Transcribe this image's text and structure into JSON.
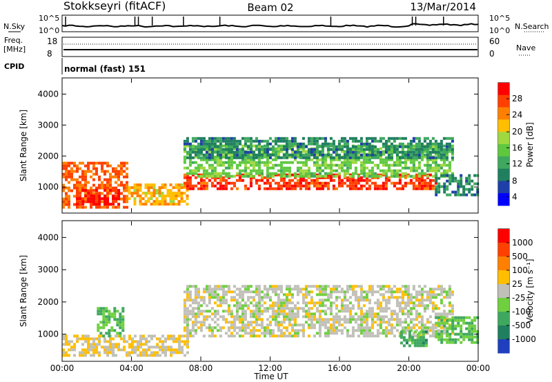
{
  "header": {
    "title": "Stokkseyri (fitACF)",
    "beam": "Beam 02",
    "date": "13/Mar/2014"
  },
  "noise_panel": {
    "left_label": "N.Sky",
    "right_label": "N.Search",
    "left_ticks": [
      "10^5",
      "10^0"
    ],
    "right_ticks": [
      "10^5",
      "10^0"
    ]
  },
  "freq_panel": {
    "left_label_1": "Freq.",
    "left_label_2": "[MHz]",
    "right_label": "Nave",
    "left_ticks": [
      "18",
      "8"
    ],
    "right_ticks": [
      "60",
      "0"
    ]
  },
  "cpid_panel": {
    "label": "CPID",
    "text": "normal (fast) 151"
  },
  "time_axis": {
    "label": "Time UT",
    "ticks": [
      "00:00",
      "04:00",
      "08:00",
      "12:00",
      "16:00",
      "20:00",
      "00:00"
    ]
  },
  "power_panel": {
    "ylabel": "Slant Range [km]",
    "yticks": [
      "4000",
      "3000",
      "2000",
      "1000"
    ],
    "colorbar_label": "Power [dB]",
    "colorbar_ticks": [
      "28",
      "24",
      "20",
      "16",
      "12",
      "8",
      "4"
    ],
    "colors": [
      "#0000ff",
      "#1f3fa8",
      "#1f7f5f",
      "#3fa85f",
      "#5fc83f",
      "#9fd83f",
      "#ffbf00",
      "#ff8000",
      "#ff4000",
      "#ff0000"
    ]
  },
  "velocity_panel": {
    "ylabel": "Slant Range [km]",
    "yticks": [
      "4000",
      "3000",
      "2000",
      "1000"
    ],
    "colorbar_label": "Velocity [m s⁻¹]",
    "colorbar_ticks": [
      "1000",
      "500",
      "100",
      "25",
      "-25",
      "-100",
      "-500",
      "-1000"
    ],
    "colors": [
      "#1f3fbf",
      "#1f7f5f",
      "#3fa85f",
      "#6fcf3f",
      "#c0c0b8",
      "#ffbf00",
      "#ff8000",
      "#ff4000",
      "#ff0000"
    ]
  },
  "chart_data": [
    {
      "type": "line",
      "name": "noise",
      "x_range": [
        0,
        24
      ],
      "y_label_ticks": [
        "10^0",
        "10^5"
      ],
      "description_series": "sky noise"
    },
    {
      "type": "heatmap",
      "name": "power",
      "xlabel": "Time UT",
      "ylabel": "Slant Range [km]",
      "x_range_hours": [
        0,
        24
      ],
      "y_range_km": [
        180,
        4500
      ],
      "colorbar": "Power [dB]",
      "color_range": [
        0,
        30
      ],
      "regions": [
        {
          "t0": 0.0,
          "t1": 3.8,
          "r0": 300,
          "r1": 1800,
          "level": 24
        },
        {
          "t0": 0.8,
          "t1": 3.2,
          "r0": 400,
          "r1": 900,
          "level": 28
        },
        {
          "t0": 3.8,
          "t1": 7.2,
          "r0": 400,
          "r1": 1100,
          "level": 20
        },
        {
          "t0": 7.0,
          "t1": 21.5,
          "r0": 900,
          "r1": 1400,
          "level": 26
        },
        {
          "t0": 7.0,
          "t1": 22.5,
          "r0": 1300,
          "r1": 2300,
          "level": 14
        },
        {
          "t0": 7.0,
          "t1": 22.5,
          "r0": 1900,
          "r1": 2600,
          "level": 8
        },
        {
          "t0": 21.5,
          "t1": 24,
          "r0": 700,
          "r1": 1400,
          "level": 8
        }
      ]
    },
    {
      "type": "heatmap",
      "name": "velocity",
      "xlabel": "Time UT",
      "ylabel": "Slant Range [km]",
      "x_range_hours": [
        0,
        24
      ],
      "y_range_km": [
        180,
        4500
      ],
      "colorbar": "Velocity [m s⁻¹]",
      "color_range": [
        -1000,
        1000
      ],
      "regions": [
        {
          "t0": 0.0,
          "t1": 7.2,
          "r0": 300,
          "r1": 900,
          "level": 100
        },
        {
          "t0": 2.0,
          "t1": 3.5,
          "r0": 900,
          "r1": 1800,
          "level": -300
        },
        {
          "t0": 7.0,
          "t1": 22.5,
          "r0": 900,
          "r1": 2500,
          "level": 0
        },
        {
          "t0": 19.5,
          "t1": 21.0,
          "r0": 600,
          "r1": 1100,
          "level": -400
        },
        {
          "t0": 21.5,
          "t1": 24,
          "r0": 700,
          "r1": 1500,
          "level": -300
        }
      ]
    }
  ]
}
